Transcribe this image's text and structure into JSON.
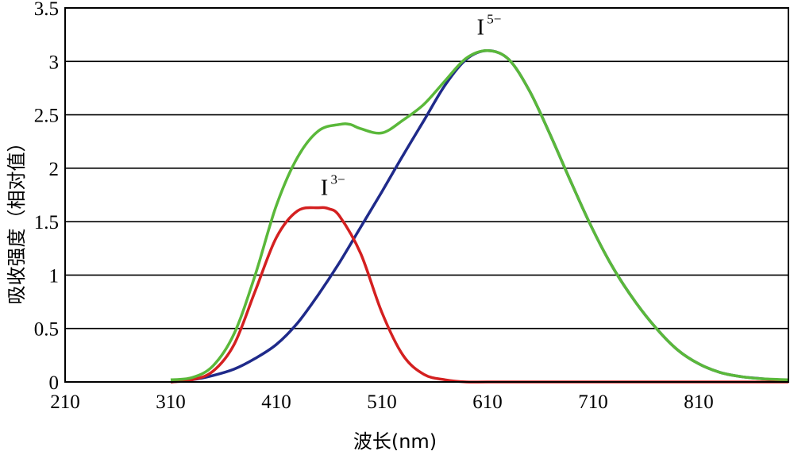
{
  "chart_data": {
    "type": "line",
    "xlabel": "波长(nm)",
    "ylabel": "吸收强度（相对值）",
    "xlim": [
      210,
      895
    ],
    "ylim": [
      0,
      3.5
    ],
    "xticks": [
      "210",
      "310",
      "410",
      "510",
      "610",
      "710",
      "810"
    ],
    "yticks": [
      "0",
      "0.5",
      "1",
      "1.5",
      "2",
      "2.5",
      "3",
      "3.5"
    ],
    "grid": "horizontal",
    "annotations": [
      {
        "base": "I",
        "sup": "3−",
        "x": 460,
        "y": 1.75
      },
      {
        "base": "I",
        "sup": "5−",
        "x": 608,
        "y": 3.25
      }
    ],
    "series": [
      {
        "color": "#1f2a8a",
        "x": [
          310,
          330,
          350,
          370,
          390,
          410,
          430,
          450,
          470,
          490,
          510,
          530,
          550,
          570,
          590,
          610,
          630,
          650,
          670,
          690,
          710,
          730,
          750,
          770,
          790,
          810,
          830,
          850,
          870,
          895
        ],
        "y": [
          0.0,
          0.02,
          0.06,
          0.12,
          0.22,
          0.35,
          0.55,
          0.82,
          1.12,
          1.45,
          1.78,
          2.12,
          2.45,
          2.78,
          3.02,
          3.1,
          3.02,
          2.72,
          2.3,
          1.85,
          1.42,
          1.05,
          0.75,
          0.5,
          0.3,
          0.17,
          0.09,
          0.05,
          0.03,
          0.01
        ]
      },
      {
        "color": "#d42020",
        "x": [
          310,
          330,
          350,
          370,
          390,
          410,
          430,
          450,
          460,
          470,
          490,
          510,
          530,
          550,
          570,
          590,
          610,
          650,
          700,
          750,
          800,
          850,
          895
        ],
        "y": [
          0.0,
          0.02,
          0.1,
          0.35,
          0.85,
          1.35,
          1.6,
          1.63,
          1.62,
          1.55,
          1.2,
          0.65,
          0.25,
          0.07,
          0.02,
          0.0,
          0.0,
          0.0,
          0.0,
          0.0,
          0.0,
          0.0,
          0.0
        ]
      },
      {
        "color": "#5ab83a",
        "x": [
          310,
          330,
          350,
          370,
          390,
          410,
          430,
          450,
          470,
          480,
          490,
          510,
          530,
          550,
          570,
          590,
          610,
          630,
          650,
          670,
          690,
          710,
          730,
          750,
          770,
          790,
          810,
          830,
          850,
          870,
          895
        ],
        "y": [
          0.02,
          0.04,
          0.15,
          0.45,
          1.0,
          1.65,
          2.1,
          2.35,
          2.41,
          2.41,
          2.37,
          2.33,
          2.45,
          2.6,
          2.82,
          3.03,
          3.1,
          3.02,
          2.72,
          2.3,
          1.85,
          1.42,
          1.05,
          0.75,
          0.5,
          0.3,
          0.17,
          0.09,
          0.05,
          0.03,
          0.02
        ]
      }
    ]
  }
}
